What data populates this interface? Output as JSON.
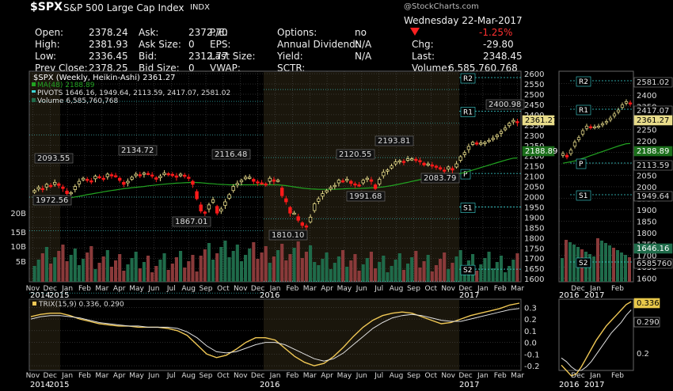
{
  "header": {
    "symbol": "$SPX",
    "name": "S&P 500 Large Cap Index",
    "exchange": "INDX",
    "watermark": "@StockCharts.com",
    "date": "Wednesday 22-Mar-2017",
    "quote": [
      {
        "label": "Open:",
        "value": "2378.24"
      },
      {
        "label": "High:",
        "value": "2381.93"
      },
      {
        "label": "Low:",
        "value": "2336.45"
      },
      {
        "label": "Prev Close:",
        "value": "2378.25"
      }
    ],
    "ask": [
      {
        "label": "Ask:",
        "value": "2372.70"
      },
      {
        "label": "Ask Size:",
        "value": "0"
      },
      {
        "label": "Bid:",
        "value": "2312.77"
      },
      {
        "label": "Bid Size:",
        "value": "0"
      }
    ],
    "ratios": [
      {
        "label": "P/E:",
        "value": ""
      },
      {
        "label": "EPS:",
        "value": ""
      },
      {
        "label": "Last Size:",
        "value": ""
      },
      {
        "label": "VWAP:",
        "value": ""
      }
    ],
    "options": [
      {
        "label": "Options:",
        "value": "no"
      },
      {
        "label": "Annual Dividend:",
        "value": "N/A"
      },
      {
        "label": "Yield:",
        "value": "N/A"
      },
      {
        "label": "SCTR:",
        "value": ""
      }
    ],
    "change_pct": "-1.25%",
    "chg_label": "Chg:",
    "chg_value": "-29.80",
    "last_label": "Last:",
    "last_value": "2348.45",
    "volume_label": "Volume:",
    "volume_value": "6,585,760,768"
  },
  "legend": {
    "main": "$SPX (Weekly, Heikin-Ashi) 2361.27",
    "ma": "MA(48) 2188.89",
    "pivots": "PIVOTS 1646.16, 1949.64, 2113.59, 2417.07, 2581.02",
    "volume": "Volume 6,585,760,768",
    "trix": "TRIX(15,9) 0.336, 0.290"
  },
  "colors": {
    "up": "#e8dc8a",
    "down": "#ff1a1a",
    "ma": "#22a422",
    "trix": "#f0c855",
    "signal": "#e0e0e0",
    "pivot": "#3dd6d6",
    "vol_up": "#1f6b4a",
    "vol_down": "#8a3a3a",
    "bg": "#000000",
    "shade": "#1a160c",
    "grid": "#555555"
  },
  "chart_data": [
    {
      "type": "candlestick",
      "title": "$SPX (Weekly, Heikin-Ashi)",
      "x_labels": [
        "Nov",
        "Dec",
        "Jan",
        "Feb",
        "Mar",
        "Apr",
        "May",
        "Jun",
        "Jul",
        "Aug",
        "Sep",
        "Oct",
        "Nov",
        "Dec",
        "Jan",
        "Feb",
        "Mar",
        "Apr",
        "May",
        "Jun",
        "Jul",
        "Aug",
        "Sep",
        "Oct",
        "Nov",
        "Dec",
        "Jan",
        "Feb",
        "Mar"
      ],
      "year_labels": [
        "2014",
        "2015",
        "2016",
        "2017"
      ],
      "y_ticks": [
        1600,
        1650,
        1700,
        1750,
        1800,
        1850,
        1900,
        1950,
        2000,
        2050,
        2100,
        2150,
        2200,
        2250,
        2300,
        2350,
        2400,
        2450,
        2500,
        2550,
        2600
      ],
      "ylim": [
        1585,
        2612
      ],
      "closes": [
        2030,
        2045,
        2035,
        2060,
        2050,
        2070,
        2055,
        2040,
        2015,
        2020,
        2050,
        2075,
        2090,
        2080,
        2075,
        2100,
        2095,
        2085,
        2110,
        2105,
        2100,
        2080,
        2060,
        2075,
        2095,
        2110,
        2105,
        2115,
        2112,
        2100,
        2085,
        2100,
        2115,
        2110,
        2108,
        2095,
        2110,
        2100,
        2090,
        2060,
        1990,
        1930,
        1920,
        1960,
        1985,
        1920,
        1940,
        1975,
        2010,
        2050,
        2065,
        2080,
        2095,
        2095,
        2075,
        2070,
        2065,
        2060,
        2090,
        2075,
        2080,
        2005,
        1975,
        1920,
        1920,
        1885,
        1860,
        1855,
        1900,
        1965,
        1990,
        2015,
        2030,
        2045,
        2055,
        2080,
        2075,
        2085,
        2065,
        2060,
        2055,
        2080,
        2090,
        2075,
        2040,
        2085,
        2120,
        2130,
        2150,
        2170,
        2175,
        2170,
        2185,
        2185,
        2180,
        2172,
        2155,
        2160,
        2150,
        2148,
        2135,
        2125,
        2145,
        2130,
        2160,
        2195,
        2215,
        2245,
        2265,
        2260,
        2262,
        2265,
        2275,
        2285,
        2300,
        2318,
        2335,
        2358,
        2372,
        2361
      ],
      "ma48": [
        1960,
        1964,
        1968,
        1972,
        1975,
        1979,
        1983,
        1987,
        1991,
        1995,
        1999,
        2002,
        2006,
        2010,
        2013,
        2017,
        2020,
        2024,
        2027,
        2030,
        2033,
        2036,
        2039,
        2041,
        2044,
        2046,
        2048,
        2050,
        2053,
        2055,
        2057,
        2059,
        2061,
        2063,
        2064,
        2066,
        2067,
        2068,
        2069,
        2070,
        2069,
        2068,
        2066,
        2064,
        2063,
        2061,
        2060,
        2059,
        2058,
        2058,
        2058,
        2058,
        2058,
        2058,
        2058,
        2058,
        2058,
        2058,
        2058,
        2058,
        2058,
        2056,
        2054,
        2051,
        2048,
        2045,
        2042,
        2040,
        2038,
        2037,
        2036,
        2036,
        2036,
        2036,
        2036,
        2037,
        2038,
        2039,
        2040,
        2040,
        2040,
        2041,
        2042,
        2043,
        2044,
        2046,
        2048,
        2051,
        2054,
        2058,
        2062,
        2066,
        2070,
        2075,
        2079,
        2083,
        2087,
        2090,
        2093,
        2096,
        2098,
        2100,
        2103,
        2106,
        2109,
        2113,
        2118,
        2124,
        2130,
        2136,
        2142,
        2148,
        2154,
        2160,
        2166,
        2172,
        2178,
        2183,
        2188,
        2189
      ],
      "annotations": [
        {
          "label": "2093.55",
          "value": 2093.55
        },
        {
          "label": "1972.56",
          "value": 1972.56
        },
        {
          "label": "2134.72",
          "value": 2134.72
        },
        {
          "label": "2116.48",
          "value": 2116.48
        },
        {
          "label": "1867.01",
          "value": 1867.01
        },
        {
          "label": "1810.10",
          "value": 1810.1
        },
        {
          "label": "2120.55",
          "value": 2120.55
        },
        {
          "label": "2193.81",
          "value": 2193.81
        },
        {
          "label": "1991.68",
          "value": 1991.68
        },
        {
          "label": "2083.79",
          "value": 2083.79
        },
        {
          "label": "2400.98",
          "value": 2400.98
        }
      ],
      "pivots": [
        {
          "label": "R2",
          "value": 2581.02
        },
        {
          "label": "R1",
          "value": 2417.07
        },
        {
          "label": "P",
          "value": 2113.59
        },
        {
          "label": "S1",
          "value": 1949.64
        },
        {
          "label": "S2",
          "value": 1646.16
        }
      ],
      "price_tags": [
        {
          "label": "2361.27",
          "value": 2361.27
        },
        {
          "label": "2188.89",
          "value": 2188.89
        }
      ],
      "volume_ticks": [
        "20B",
        "15B",
        "10B",
        "5B"
      ]
    },
    {
      "type": "line",
      "title": "TRIX(15,9)",
      "y_ticks": [
        -0.2,
        -0.1,
        0.0,
        0.1,
        0.2,
        0.3
      ],
      "ylim": [
        -0.24,
        0.37
      ],
      "series": [
        {
          "name": "TRIX",
          "values": [
            0.22,
            0.24,
            0.25,
            0.25,
            0.23,
            0.2,
            0.18,
            0.16,
            0.15,
            0.14,
            0.14,
            0.13,
            0.13,
            0.13,
            0.12,
            0.1,
            0.06,
            -0.02,
            -0.1,
            -0.13,
            -0.11,
            -0.06,
            0.0,
            0.04,
            0.04,
            0.02,
            -0.05,
            -0.12,
            -0.17,
            -0.2,
            -0.18,
            -0.12,
            -0.04,
            0.05,
            0.13,
            0.19,
            0.23,
            0.25,
            0.26,
            0.25,
            0.22,
            0.19,
            0.16,
            0.17,
            0.2,
            0.23,
            0.25,
            0.27,
            0.29,
            0.32,
            0.336
          ]
        },
        {
          "name": "Signal",
          "values": [
            0.2,
            0.22,
            0.23,
            0.23,
            0.22,
            0.21,
            0.19,
            0.17,
            0.16,
            0.15,
            0.14,
            0.14,
            0.13,
            0.13,
            0.13,
            0.12,
            0.09,
            0.04,
            -0.03,
            -0.08,
            -0.09,
            -0.08,
            -0.05,
            -0.02,
            0.0,
            0.0,
            -0.02,
            -0.06,
            -0.1,
            -0.14,
            -0.16,
            -0.14,
            -0.09,
            -0.02,
            0.05,
            0.12,
            0.17,
            0.21,
            0.23,
            0.24,
            0.23,
            0.21,
            0.19,
            0.18,
            0.18,
            0.2,
            0.22,
            0.24,
            0.26,
            0.28,
            0.29
          ]
        }
      ]
    }
  ],
  "zoom_chart": {
    "x_labels": [
      "Dec",
      "Jan",
      "Feb"
    ],
    "year_labels": [
      "2016",
      "2017"
    ],
    "y_ticks": [
      1600,
      1650,
      1700,
      1750,
      1800,
      1850,
      1900,
      1950,
      2000,
      2050,
      2100,
      2150,
      2200,
      2250,
      2300,
      2350,
      2400,
      2450
    ],
    "price_tags": [
      {
        "label": "2581.02"
      },
      {
        "label": "2417.07"
      },
      {
        "label": "2361.27"
      },
      {
        "label": "2188.89"
      },
      {
        "label": "2113.59"
      },
      {
        "label": "1949.64"
      },
      {
        "label": "1646.16"
      },
      {
        "label": "6585760"
      }
    ],
    "pivots": [
      "R2",
      "R1",
      "P",
      "S1",
      "S2"
    ],
    "trix_ticks": [
      "0.2"
    ],
    "trix_tags": [
      {
        "label": "0.336"
      },
      {
        "label": "0.290"
      }
    ]
  }
}
